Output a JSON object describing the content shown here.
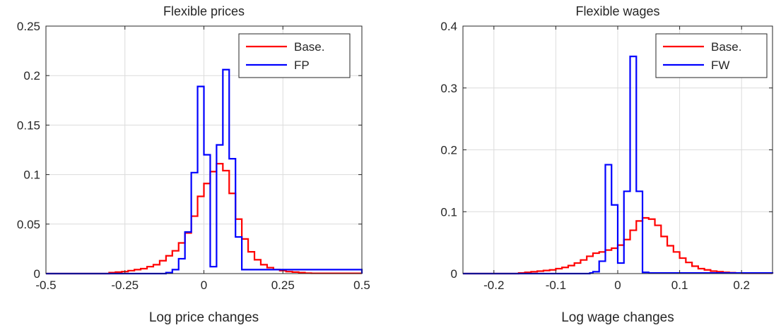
{
  "chart_data": [
    {
      "type": "step",
      "title": "Flexible prices",
      "xlabel": "Log price changes",
      "ylabel": "",
      "xlim": [
        -0.5,
        0.5
      ],
      "ylim": [
        0,
        0.25
      ],
      "xticks": [
        -0.5,
        -0.25,
        0,
        0.25,
        0.5
      ],
      "xtick_labels": [
        "-0.5",
        "-0.25",
        "0",
        "0.25",
        "0.5"
      ],
      "yticks": [
        0,
        0.05,
        0.1,
        0.15,
        0.2,
        0.25
      ],
      "ytick_labels": [
        "0",
        "0.05",
        "0.1",
        "0.15",
        "0.2",
        "0.25"
      ],
      "grid": true,
      "legend_position": "top-right",
      "series": [
        {
          "name": "Base.",
          "color": "#ff0000",
          "x": [
            -0.5,
            -0.3,
            -0.28,
            -0.26,
            -0.24,
            -0.22,
            -0.2,
            -0.18,
            -0.16,
            -0.14,
            -0.12,
            -0.1,
            -0.08,
            -0.06,
            -0.04,
            -0.02,
            0,
            0.02,
            0.04,
            0.06,
            0.08,
            0.1,
            0.12,
            0.14,
            0.16,
            0.18,
            0.2,
            0.22,
            0.24,
            0.26,
            0.28,
            0.3,
            0.32,
            0.34,
            0.5
          ],
          "y": [
            0,
            0.001,
            0.0015,
            0.002,
            0.003,
            0.004,
            0.005,
            0.007,
            0.009,
            0.013,
            0.018,
            0.023,
            0.031,
            0.041,
            0.058,
            0.078,
            0.091,
            0.103,
            0.111,
            0.104,
            0.081,
            0.055,
            0.035,
            0.022,
            0.014,
            0.009,
            0.006,
            0.004,
            0.003,
            0.002,
            0.0015,
            0.001,
            0.0005,
            0.0003,
            0
          ]
        },
        {
          "name": "FP",
          "color": "#0000ff",
          "x": [
            -0.5,
            -0.12,
            -0.1,
            -0.08,
            -0.06,
            -0.04,
            -0.02,
            0,
            0.02,
            0.04,
            0.06,
            0.08,
            0.1,
            0.12,
            0.5
          ],
          "y": [
            0,
            0.001,
            0.004,
            0.015,
            0.042,
            0.102,
            0.189,
            0.12,
            0.007,
            0.13,
            0.206,
            0.116,
            0.037,
            0.004,
            0
          ]
        }
      ]
    },
    {
      "type": "step",
      "title": "Flexible wages",
      "xlabel": "Log wage changes",
      "ylabel": "",
      "xlim": [
        -0.25,
        0.25
      ],
      "ylim": [
        0,
        0.4
      ],
      "xticks": [
        -0.2,
        -0.1,
        0,
        0.1,
        0.2
      ],
      "xtick_labels": [
        "-0.2",
        "-0.1",
        "0",
        "0.1",
        "0.2"
      ],
      "yticks": [
        0,
        0.1,
        0.2,
        0.3,
        0.4
      ],
      "ytick_labels": [
        "0",
        "0.1",
        "0.2",
        "0.3",
        "0.4"
      ],
      "grid": true,
      "legend_position": "top-right",
      "series": [
        {
          "name": "Base.",
          "color": "#ff0000",
          "x": [
            -0.25,
            -0.16,
            -0.15,
            -0.14,
            -0.13,
            -0.12,
            -0.11,
            -0.1,
            -0.09,
            -0.08,
            -0.07,
            -0.06,
            -0.05,
            -0.04,
            -0.03,
            -0.02,
            -0.01,
            0,
            0.01,
            0.02,
            0.03,
            0.04,
            0.05,
            0.06,
            0.07,
            0.08,
            0.09,
            0.1,
            0.11,
            0.12,
            0.13,
            0.14,
            0.15,
            0.16,
            0.17,
            0.18,
            0.19,
            0.2,
            0.25
          ],
          "y": [
            0,
            0.001,
            0.002,
            0.003,
            0.004,
            0.005,
            0.006,
            0.008,
            0.01,
            0.013,
            0.017,
            0.022,
            0.028,
            0.033,
            0.035,
            0.038,
            0.041,
            0.046,
            0.055,
            0.07,
            0.085,
            0.09,
            0.088,
            0.078,
            0.06,
            0.045,
            0.035,
            0.025,
            0.018,
            0.012,
            0.008,
            0.006,
            0.004,
            0.003,
            0.002,
            0.0015,
            0.001,
            0.0005,
            0
          ]
        },
        {
          "name": "FW",
          "color": "#0000ff",
          "x": [
            -0.25,
            -0.045,
            -0.04,
            -0.03,
            -0.02,
            -0.01,
            0,
            0.01,
            0.02,
            0.03,
            0.04,
            0.05,
            0.25
          ],
          "y": [
            0,
            0.001,
            0.003,
            0.02,
            0.176,
            0.111,
            0.017,
            0.133,
            0.351,
            0.133,
            0.002,
            0.001,
            0
          ]
        }
      ]
    }
  ]
}
